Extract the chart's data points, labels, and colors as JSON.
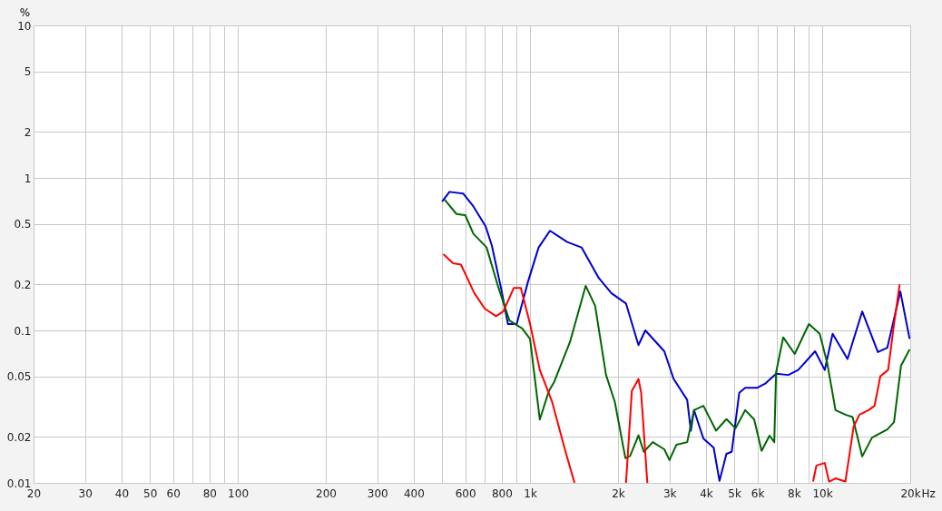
{
  "chart_data": {
    "type": "line",
    "ylabel": "%",
    "xlabel": "Hz",
    "log": "xy",
    "grid": true,
    "legend": false,
    "line_style": "solid",
    "xlim": [
      20,
      20000
    ],
    "ylim": [
      0.01,
      10
    ],
    "xticks": [
      20,
      30,
      40,
      50,
      60,
      {
        "value": 70,
        "label": null
      },
      80,
      {
        "value": 90,
        "label": null
      },
      100,
      200,
      300,
      400,
      {
        "value": 500,
        "label": null
      },
      600,
      {
        "value": 700,
        "label": null
      },
      800,
      {
        "value": 900,
        "label": null
      },
      {
        "value": 1000,
        "label": "1k"
      },
      {
        "value": 2000,
        "label": "2k"
      },
      {
        "value": 3000,
        "label": "3k"
      },
      {
        "value": 4000,
        "label": "4k"
      },
      {
        "value": 5000,
        "label": "5k"
      },
      {
        "value": 6000,
        "label": "6k"
      },
      {
        "value": 7000,
        "label": null
      },
      {
        "value": 8000,
        "label": "8k"
      },
      {
        "value": 9000,
        "label": null
      },
      {
        "value": 10000,
        "label": "10k"
      },
      {
        "value": 20000,
        "label": "20k"
      }
    ],
    "yticks": [
      0.01,
      0.02,
      0.05,
      0.1,
      0.2,
      0.5,
      1,
      2,
      5,
      10
    ],
    "series": [
      {
        "color": "#0000cc",
        "x": [
          500,
          530,
          590,
          640,
          705,
          740,
          800,
          840,
          900,
          985,
          1070,
          1170,
          1340,
          1500,
          1720,
          1900,
          2130,
          2350,
          2480,
          2880,
          3100,
          3450,
          3550,
          3640,
          3920,
          4250,
          4450,
          4700,
          4900,
          5200,
          5450,
          5980,
          6400,
          6950,
          7650,
          8270,
          9450,
          10200,
          10850,
          12200,
          13700,
          15500,
          16700,
          18500,
          19900
        ],
        "values": [
          0.7,
          0.81,
          0.79,
          0.65,
          0.48,
          0.36,
          0.18,
          0.11,
          0.11,
          0.21,
          0.35,
          0.45,
          0.38,
          0.35,
          0.22,
          0.175,
          0.15,
          0.08,
          0.1,
          0.073,
          0.048,
          0.035,
          0.022,
          0.03,
          0.0195,
          0.017,
          0.0103,
          0.0155,
          0.016,
          0.039,
          0.042,
          0.042,
          0.045,
          0.052,
          0.051,
          0.055,
          0.073,
          0.055,
          0.095,
          0.065,
          0.133,
          0.072,
          0.077,
          0.18,
          0.088
        ]
      },
      {
        "color": "#006600",
        "x": [
          510,
          560,
          600,
          640,
          710,
          780,
          850,
          940,
          1000,
          1080,
          1160,
          1210,
          1370,
          1550,
          1670,
          1820,
          1950,
          2120,
          2200,
          2350,
          2450,
          2630,
          2880,
          3000,
          3170,
          3450,
          3640,
          3920,
          4330,
          4700,
          5050,
          5450,
          5850,
          6200,
          6600,
          6850,
          6950,
          7350,
          8050,
          9000,
          9800,
          10400,
          11100,
          12000,
          12700,
          13700,
          14800,
          16700,
          17600,
          18600,
          19900
        ],
        "values": [
          0.72,
          0.58,
          0.57,
          0.43,
          0.35,
          0.19,
          0.116,
          0.103,
          0.088,
          0.026,
          0.04,
          0.046,
          0.084,
          0.196,
          0.145,
          0.051,
          0.034,
          0.0145,
          0.015,
          0.0205,
          0.016,
          0.0185,
          0.0166,
          0.0141,
          0.0178,
          0.0185,
          0.03,
          0.032,
          0.022,
          0.0262,
          0.0228,
          0.03,
          0.026,
          0.0162,
          0.0204,
          0.0185,
          0.053,
          0.09,
          0.07,
          0.11,
          0.095,
          0.061,
          0.03,
          0.028,
          0.027,
          0.0149,
          0.0198,
          0.0224,
          0.025,
          0.0586,
          0.075
        ]
      },
      {
        "color": "#ff0000",
        "x": [
          505,
          545,
          580,
          645,
          700,
          765,
          810,
          880,
          930,
          1000,
          1080,
          1190,
          1320,
          1420,
          1800,
          2130,
          2230,
          2350,
          2400,
          2520,
          5000,
          9300,
          9550,
          10200,
          10550,
          11100,
          12000,
          12800,
          13400,
          14400,
          15100,
          15800,
          16800,
          17600,
          18400
        ],
        "values": [
          0.316,
          0.276,
          0.27,
          0.175,
          0.139,
          0.124,
          0.133,
          0.19,
          0.19,
          0.11,
          0.055,
          0.034,
          0.0162,
          0.01,
          null,
          0.01,
          0.04,
          0.048,
          0.039,
          0.01,
          null,
          0.0102,
          0.013,
          0.0135,
          0.0102,
          0.0107,
          0.0102,
          0.0233,
          0.028,
          0.03,
          0.032,
          0.05,
          0.055,
          0.11,
          0.2
        ]
      }
    ]
  }
}
